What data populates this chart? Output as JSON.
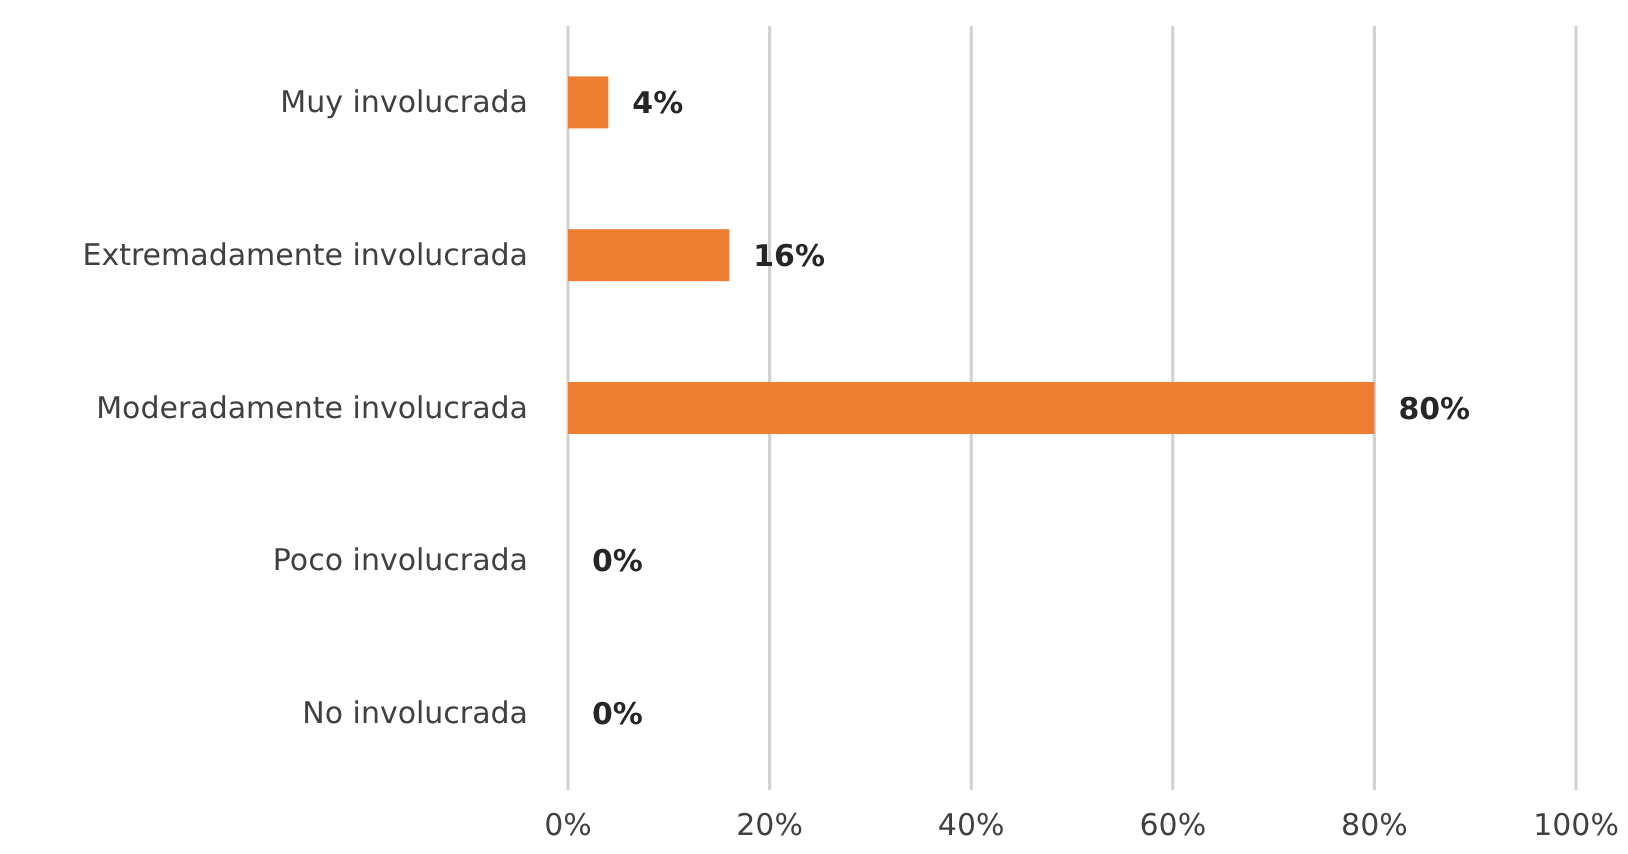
{
  "chart_data": {
    "type": "bar",
    "orientation": "horizontal",
    "categories": [
      "Muy involucrada",
      "Extremadamente involucrada",
      "Moderadamente involucrada",
      "Poco involucrada",
      "No involucrada"
    ],
    "values": [
      4,
      16,
      80,
      0,
      0
    ],
    "value_labels": [
      "4%",
      "16%",
      "80%",
      "0%",
      "0%"
    ],
    "color": "#ed7d31",
    "xlim": [
      0,
      100
    ],
    "xticks": [
      {
        "value": 0,
        "label": "0%"
      },
      {
        "value": 20,
        "label": "20%"
      },
      {
        "value": 40,
        "label": "40%"
      },
      {
        "value": 60,
        "label": "60%"
      },
      {
        "value": 80,
        "label": "80%"
      },
      {
        "value": 100,
        "label": "100%"
      }
    ],
    "grid": "x"
  }
}
